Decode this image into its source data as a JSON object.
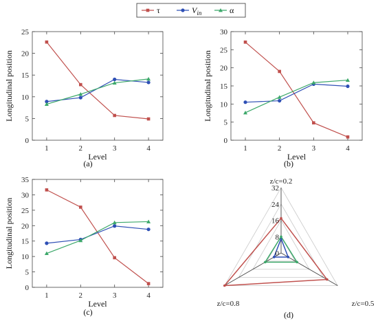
{
  "legend": [
    {
      "symbol": "τ",
      "sub": "",
      "color": "#C0504D",
      "marker": "square"
    },
    {
      "symbol": "V",
      "sub": "in",
      "color": "#2E4FB5",
      "marker": "circle"
    },
    {
      "symbol": "α",
      "sub": "",
      "color": "#3CA86A",
      "marker": "triangle"
    }
  ],
  "chart_data": [
    {
      "type": "line",
      "panel": "(a)",
      "x": [
        1,
        2,
        3,
        4
      ],
      "xlabel": "Level",
      "ylabel": "Longitudinal position",
      "ylim": [
        0,
        25
      ],
      "yticks": [
        0,
        5,
        10,
        15,
        20,
        25
      ],
      "series": [
        {
          "name": "τ",
          "color": "#C0504D",
          "marker": "square",
          "values": [
            22.6,
            12.8,
            5.7,
            4.9
          ]
        },
        {
          "name": "Vin",
          "color": "#2E4FB5",
          "marker": "circle",
          "values": [
            8.9,
            9.8,
            14.0,
            13.3
          ]
        },
        {
          "name": "α",
          "color": "#3CA86A",
          "marker": "triangle",
          "values": [
            8.3,
            10.6,
            13.2,
            14.1
          ]
        }
      ]
    },
    {
      "type": "line",
      "panel": "(b)",
      "x": [
        1,
        2,
        3,
        4
      ],
      "xlabel": "Level",
      "ylabel": "Longitudinal position",
      "ylim": [
        0,
        30
      ],
      "yticks": [
        0,
        5,
        10,
        15,
        20,
        25,
        30
      ],
      "series": [
        {
          "name": "τ",
          "color": "#C0504D",
          "marker": "square",
          "values": [
            27.1,
            19.0,
            4.8,
            0.9
          ]
        },
        {
          "name": "Vin",
          "color": "#2E4FB5",
          "marker": "circle",
          "values": [
            10.5,
            10.9,
            15.5,
            14.9
          ]
        },
        {
          "name": "α",
          "color": "#3CA86A",
          "marker": "triangle",
          "values": [
            7.6,
            11.9,
            15.9,
            16.6
          ]
        }
      ]
    },
    {
      "type": "line",
      "panel": "(c)",
      "x": [
        1,
        2,
        3,
        4
      ],
      "xlabel": "Level",
      "ylabel": "Longitudinal position",
      "ylim": [
        0,
        35
      ],
      "yticks": [
        0,
        5,
        10,
        15,
        20,
        25,
        30,
        35
      ],
      "series": [
        {
          "name": "τ",
          "color": "#C0504D",
          "marker": "square",
          "values": [
            31.6,
            26.0,
            9.6,
            1.2
          ]
        },
        {
          "name": "Vin",
          "color": "#2E4FB5",
          "marker": "circle",
          "values": [
            14.3,
            15.5,
            19.9,
            18.8
          ]
        },
        {
          "name": "α",
          "color": "#3CA86A",
          "marker": "triangle",
          "values": [
            11.0,
            15.2,
            21.0,
            21.3
          ]
        }
      ]
    },
    {
      "type": "radar",
      "panel": "(d)",
      "axes": [
        "z/c=0.2",
        "z/c=0.5",
        "z/c=0.8"
      ],
      "rmin": 0,
      "rmax": 32,
      "rticks": [
        0,
        8,
        16,
        24,
        32
      ],
      "series": [
        {
          "name": "τ",
          "color": "#C0504D",
          "values": [
            17,
            26,
            32
          ]
        },
        {
          "name": "Vin",
          "color": "#2E4FB5",
          "values": [
            7,
            4,
            4
          ]
        },
        {
          "name": "α",
          "color": "#3CA86A",
          "values": [
            8,
            9,
            9
          ]
        }
      ]
    }
  ]
}
